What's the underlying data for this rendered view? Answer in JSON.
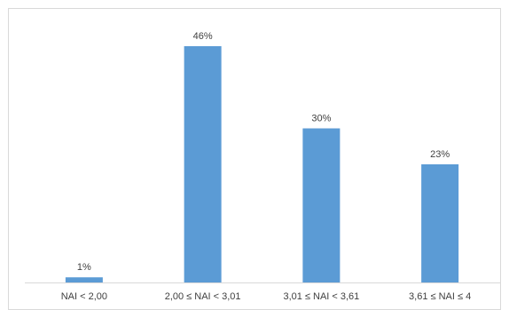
{
  "chart_data": {
    "type": "bar",
    "categories": [
      "NAI  <  2,00",
      "2,00  ≤  NAI < 3,01",
      "3,01 ≤  NAI < 3,61",
      "3,61 ≤  NAI ≤  4"
    ],
    "values": [
      1,
      46,
      30,
      23
    ],
    "data_labels": [
      "1%",
      "46%",
      "30%",
      "23%"
    ],
    "unit": "%",
    "title": "",
    "xlabel": "",
    "ylabel": "",
    "ylim": [
      0,
      50
    ],
    "grid": false,
    "legend": "none",
    "bar_color": "#5b9bd5",
    "axis_color": "#d9d9d9",
    "text_color": "#404040"
  }
}
